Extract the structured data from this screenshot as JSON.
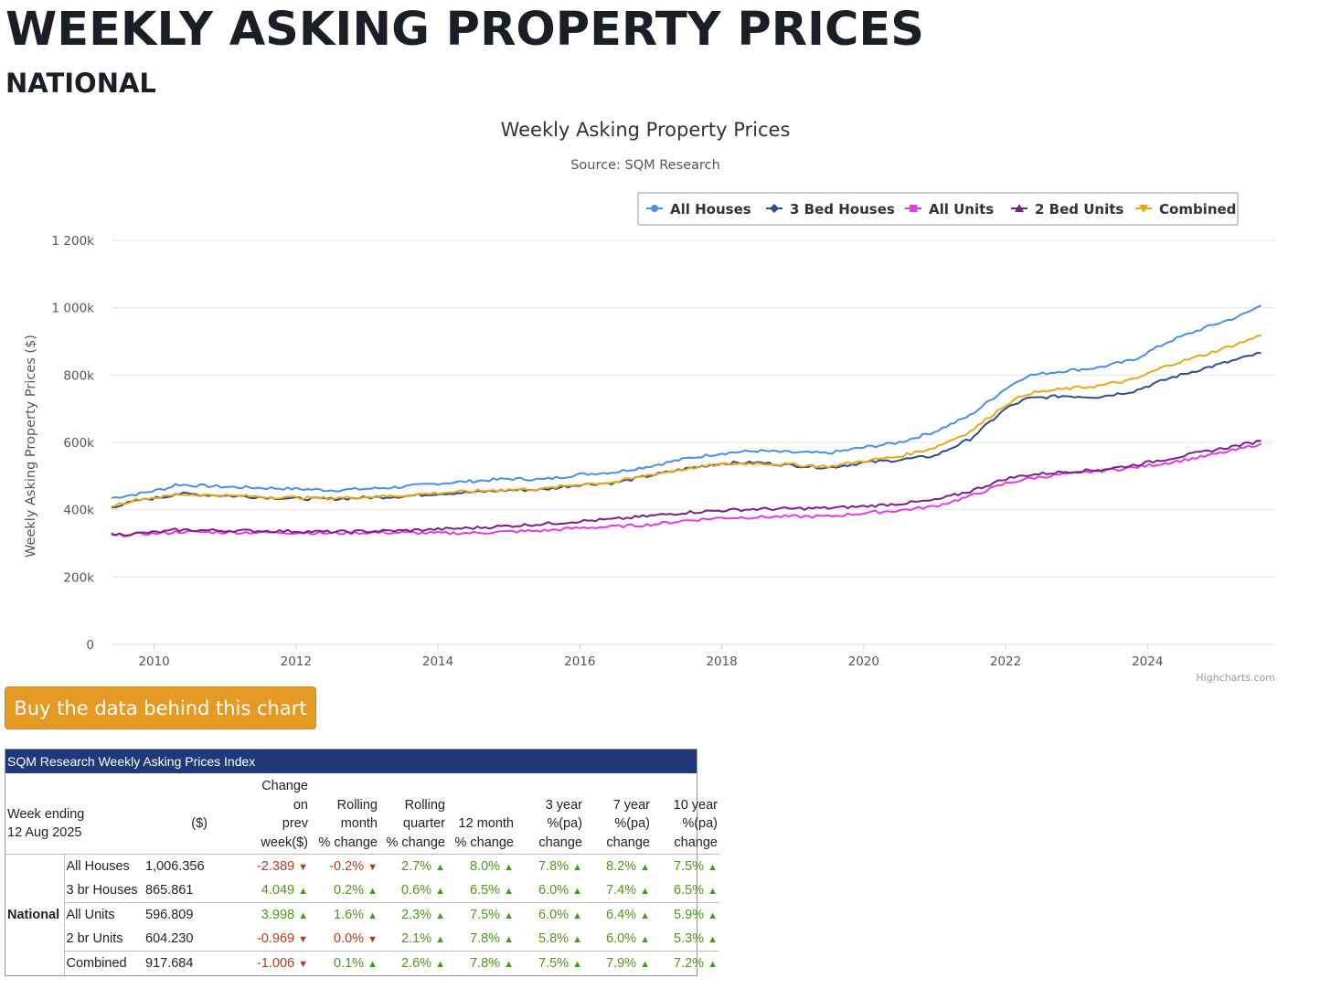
{
  "page": {
    "title": "WEEKLY ASKING PROPERTY PRICES",
    "subtitle": "NATIONAL",
    "buy_label": "Buy the data behind this chart"
  },
  "chart_data": {
    "type": "line",
    "title": "Weekly Asking Property Prices",
    "subtitle": "Source: SQM Research",
    "xlabel": "",
    "ylabel": "Weekly Asking Property Prices ($)",
    "credits": "Highcharts.com",
    "xlim": [
      2009.4,
      2025.8
    ],
    "ylim": [
      0,
      1200000
    ],
    "x_ticks": [
      2010,
      2012,
      2014,
      2016,
      2018,
      2020,
      2022,
      2024
    ],
    "y_ticks": [
      0,
      200000,
      400000,
      600000,
      800000,
      1000000,
      1200000
    ],
    "y_tick_labels": [
      "0",
      "200k",
      "400k",
      "600k",
      "800k",
      "1 000k",
      "1 200k"
    ],
    "legend_position": "top-right",
    "series": [
      {
        "name": "All Houses",
        "color": "#4a8ee6",
        "marker": "circle",
        "x": [
          2009.4,
          2009.8,
          2010.2,
          2010.3,
          2011.0,
          2012.0,
          2012.5,
          2013.0,
          2013.5,
          2014.0,
          2014.5,
          2015.0,
          2015.5,
          2016.0,
          2016.5,
          2017.0,
          2017.5,
          2018.0,
          2018.5,
          2019.0,
          2019.5,
          2020.0,
          2020.5,
          2021.0,
          2021.5,
          2022.0,
          2022.3,
          2022.8,
          2023.3,
          2023.8,
          2024.3,
          2024.8,
          2025.3,
          2025.6
        ],
        "y": [
          435000,
          448000,
          465000,
          475000,
          468000,
          462000,
          458000,
          462000,
          468000,
          478000,
          485000,
          492000,
          490000,
          505000,
          512000,
          530000,
          552000,
          568000,
          575000,
          570000,
          568000,
          585000,
          600000,
          632000,
          680000,
          760000,
          798000,
          812000,
          822000,
          845000,
          900000,
          940000,
          975000,
          1006356
        ]
      },
      {
        "name": "3 Bed Houses",
        "color": "#2b4c8c",
        "marker": "diamond",
        "x": [
          2009.4,
          2009.8,
          2010.2,
          2010.3,
          2011.0,
          2012.0,
          2012.5,
          2013.0,
          2013.5,
          2014.0,
          2014.5,
          2015.0,
          2015.5,
          2016.0,
          2016.5,
          2017.0,
          2017.5,
          2018.0,
          2018.5,
          2019.0,
          2019.5,
          2020.0,
          2020.5,
          2021.0,
          2021.5,
          2022.0,
          2022.3,
          2022.8,
          2023.3,
          2023.8,
          2024.3,
          2024.8,
          2025.3,
          2025.6
        ],
        "y": [
          408000,
          428000,
          440000,
          448000,
          442000,
          433000,
          432000,
          436000,
          440000,
          448000,
          452000,
          458000,
          460000,
          475000,
          480000,
          502000,
          522000,
          538000,
          540000,
          532000,
          525000,
          540000,
          548000,
          560000,
          610000,
          700000,
          730000,
          738000,
          735000,
          752000,
          790000,
          820000,
          848000,
          865861
        ]
      },
      {
        "name": "All Units",
        "color": "#e23be5",
        "marker": "square",
        "x": [
          2009.4,
          2009.8,
          2010.2,
          2010.3,
          2011.0,
          2012.0,
          2012.5,
          2013.0,
          2013.5,
          2014.0,
          2014.5,
          2015.0,
          2015.5,
          2016.0,
          2016.5,
          2017.0,
          2017.5,
          2018.0,
          2018.5,
          2019.0,
          2019.5,
          2020.0,
          2020.5,
          2021.0,
          2021.5,
          2022.0,
          2022.3,
          2022.8,
          2023.3,
          2023.8,
          2024.3,
          2024.8,
          2025.3,
          2025.6
        ],
        "y": [
          323000,
          328000,
          331000,
          334000,
          333000,
          332000,
          330000,
          332000,
          332000,
          330000,
          331000,
          335000,
          338000,
          346000,
          350000,
          356000,
          368000,
          376000,
          378000,
          380000,
          380000,
          390000,
          398000,
          410000,
          440000,
          478000,
          492000,
          505000,
          515000,
          525000,
          540000,
          558000,
          580000,
          596809
        ]
      },
      {
        "name": "2 Bed Units",
        "color": "#7a1f86",
        "marker": "triangle",
        "x": [
          2009.4,
          2009.8,
          2010.2,
          2010.3,
          2011.0,
          2012.0,
          2012.5,
          2013.0,
          2013.5,
          2014.0,
          2014.5,
          2015.0,
          2015.5,
          2016.0,
          2016.5,
          2017.0,
          2017.5,
          2018.0,
          2018.5,
          2019.0,
          2019.5,
          2020.0,
          2020.5,
          2021.0,
          2021.5,
          2022.0,
          2022.3,
          2022.8,
          2023.3,
          2023.8,
          2024.3,
          2024.8,
          2025.3,
          2025.6
        ],
        "y": [
          326000,
          330000,
          336000,
          340000,
          338000,
          336000,
          334000,
          336000,
          338000,
          342000,
          346000,
          352000,
          358000,
          366000,
          372000,
          382000,
          392000,
          398000,
          402000,
          403000,
          405000,
          410000,
          418000,
          428000,
          455000,
          492000,
          503000,
          512000,
          518000,
          532000,
          552000,
          572000,
          592000,
          604230
        ]
      },
      {
        "name": "Combined",
        "color": "#e8a817",
        "marker": "triangle-down",
        "x": [
          2009.4,
          2009.8,
          2010.2,
          2010.3,
          2011.0,
          2012.0,
          2012.5,
          2013.0,
          2013.5,
          2014.0,
          2014.5,
          2015.0,
          2015.5,
          2016.0,
          2016.5,
          2017.0,
          2017.5,
          2018.0,
          2018.5,
          2019.0,
          2019.5,
          2020.0,
          2020.5,
          2021.0,
          2021.5,
          2022.0,
          2022.3,
          2022.8,
          2023.3,
          2023.8,
          2024.3,
          2024.8,
          2025.3,
          2025.6
        ],
        "y": [
          412000,
          432000,
          440000,
          446000,
          442000,
          436000,
          434000,
          438000,
          442000,
          450000,
          455000,
          460000,
          462000,
          476000,
          482000,
          504000,
          522000,
          535000,
          538000,
          534000,
          528000,
          545000,
          558000,
          585000,
          632000,
          712000,
          745000,
          758000,
          768000,
          786000,
          830000,
          860000,
          895000,
          917684
        ]
      }
    ]
  },
  "table": {
    "title": "SQM Research Weekly Asking Prices Index",
    "headers": {
      "week": [
        "Week ending",
        "12 Aug 2025"
      ],
      "value": "($)",
      "change_prev": [
        "Change",
        "on",
        "prev",
        "week($)"
      ],
      "rolling_month": [
        "Rolling",
        "month",
        "% change"
      ],
      "rolling_quarter": [
        "Rolling",
        "quarter",
        "% change"
      ],
      "twelve_month": [
        "12 month",
        "% change"
      ],
      "three_year": [
        "3 year",
        "%(pa)",
        "change"
      ],
      "seven_year": [
        "7 year",
        "%(pa)",
        "change"
      ],
      "ten_year": [
        "10 year",
        "%(pa)",
        "change"
      ]
    },
    "region": "National",
    "rows": [
      {
        "type": "All Houses",
        "value": "1,006.356",
        "change": "-2.389",
        "change_dir": "down",
        "month": "-0.2%",
        "month_dir": "down",
        "quarter": "2.7%",
        "twelve": "8.0%",
        "three": "7.8%",
        "seven": "8.2%",
        "ten": "7.5%"
      },
      {
        "type": "3 br Houses",
        "value": "865.861",
        "change": "4.049",
        "change_dir": "up",
        "month": "0.2%",
        "month_dir": "up",
        "quarter": "0.6%",
        "twelve": "6.5%",
        "three": "6.0%",
        "seven": "7.4%",
        "ten": "6.5%"
      },
      {
        "type": "All Units",
        "value": "596.809",
        "change": "3.998",
        "change_dir": "up",
        "month": "1.6%",
        "month_dir": "up",
        "quarter": "2.3%",
        "twelve": "7.5%",
        "three": "6.0%",
        "seven": "6.4%",
        "ten": "5.9%"
      },
      {
        "type": "2 br Units",
        "value": "604.230",
        "change": "-0.969",
        "change_dir": "down",
        "month": "0.0%",
        "month_dir": "down",
        "quarter": "2.1%",
        "twelve": "7.8%",
        "three": "5.8%",
        "seven": "6.0%",
        "ten": "5.3%"
      },
      {
        "type": "Combined",
        "value": "917.684",
        "change": "-1.006",
        "change_dir": "down",
        "month": "0.1%",
        "month_dir": "up",
        "quarter": "2.6%",
        "twelve": "7.8%",
        "three": "7.5%",
        "seven": "7.9%",
        "ten": "7.2%"
      }
    ]
  }
}
